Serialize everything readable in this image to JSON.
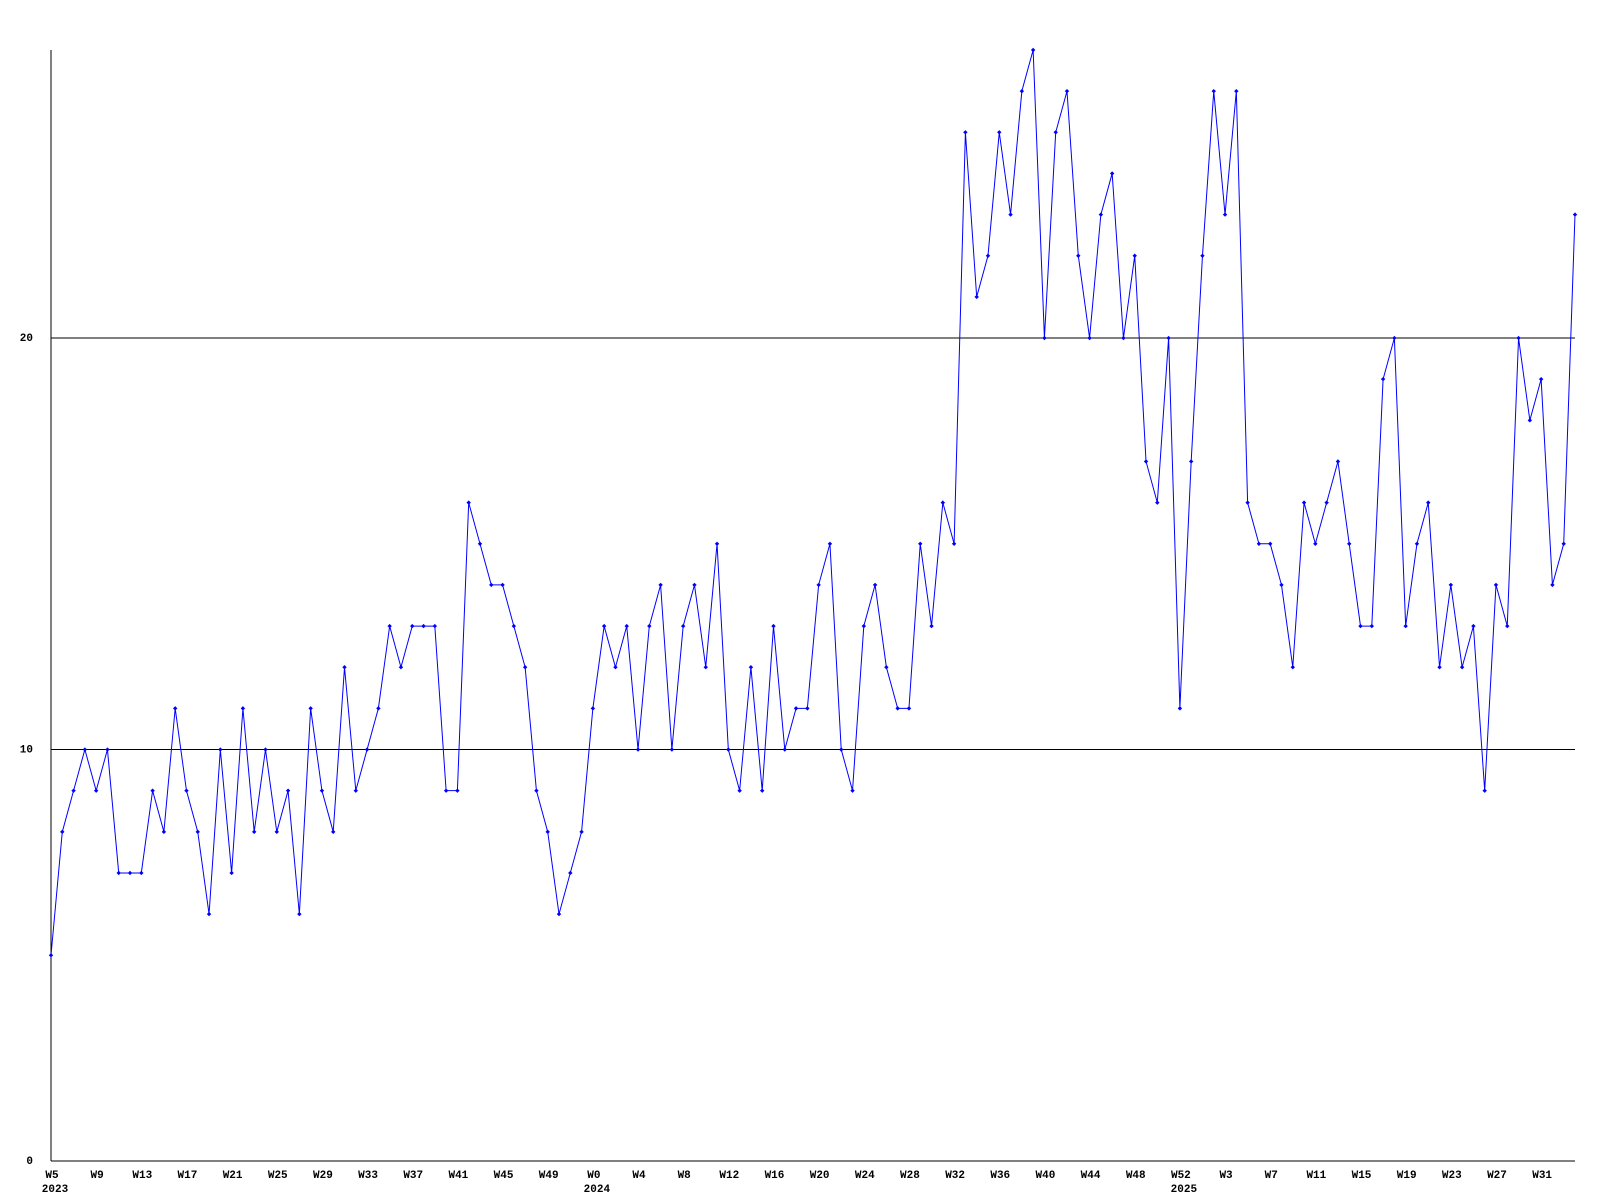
{
  "chart_data": {
    "type": "line",
    "color": "#0000ff",
    "grid": true,
    "categories": [
      "W5",
      null,
      null,
      null,
      "W9",
      null,
      null,
      null,
      "W13",
      null,
      null,
      null,
      "W17",
      null,
      null,
      null,
      "W21",
      null,
      null,
      null,
      "W25",
      null,
      null,
      null,
      "W29",
      null,
      null,
      null,
      "W33",
      null,
      null,
      null,
      "W37",
      null,
      null,
      null,
      "W41",
      null,
      null,
      null,
      "W45",
      null,
      null,
      null,
      "W49",
      null,
      null,
      null,
      "W0",
      null,
      null,
      null,
      "W4",
      null,
      null,
      null,
      "W8",
      null,
      null,
      null,
      "W12",
      null,
      null,
      null,
      "W16",
      null,
      null,
      null,
      "W20",
      null,
      null,
      null,
      "W24",
      null,
      null,
      null,
      "W28",
      null,
      null,
      null,
      "W32",
      null,
      null,
      null,
      "W36",
      null,
      null,
      null,
      "W40",
      null,
      null,
      null,
      "W44",
      null,
      null,
      null,
      "W48",
      null,
      null,
      null,
      "W52",
      null,
      null,
      null,
      "W3",
      null,
      null,
      null,
      "W7",
      null,
      null,
      null,
      "W11",
      null,
      null,
      null,
      "W15",
      null,
      null,
      null,
      "W19",
      null,
      null,
      null,
      "W23",
      null,
      null,
      null,
      "W27",
      null,
      null,
      null,
      "W31",
      null,
      null,
      null
    ],
    "years": [
      "2023",
      null,
      null,
      null,
      null,
      null,
      null,
      null,
      null,
      null,
      null,
      null,
      null,
      null,
      null,
      null,
      null,
      null,
      null,
      null,
      null,
      null,
      null,
      null,
      null,
      null,
      null,
      null,
      null,
      null,
      null,
      null,
      null,
      null,
      null,
      null,
      null,
      null,
      null,
      null,
      null,
      null,
      null,
      null,
      null,
      null,
      null,
      null,
      "2024",
      null,
      null,
      null,
      null,
      null,
      null,
      null,
      null,
      null,
      null,
      null,
      null,
      null,
      null,
      null,
      null,
      null,
      null,
      null,
      null,
      null,
      null,
      null,
      null,
      null,
      null,
      null,
      null,
      null,
      null,
      null,
      null,
      null,
      null,
      null,
      null,
      null,
      null,
      null,
      null,
      null,
      null,
      null,
      null,
      null,
      null,
      null,
      null,
      null,
      null,
      null,
      "2025",
      null,
      null,
      null,
      null,
      null,
      null,
      null,
      null,
      null,
      null,
      null,
      null,
      null,
      null,
      null,
      null,
      null,
      null,
      null,
      null,
      null,
      null,
      null,
      null,
      null,
      null,
      null,
      null,
      null,
      null,
      null,
      null,
      null,
      null,
      null
    ],
    "values": [
      5,
      8,
      9,
      10,
      9,
      10,
      7,
      7,
      7,
      9,
      8,
      11,
      9,
      8,
      6,
      10,
      7,
      11,
      8,
      10,
      8,
      9,
      6,
      11,
      9,
      8,
      12,
      9,
      10,
      11,
      13,
      12,
      13,
      13,
      13,
      9,
      9,
      16,
      15,
      14,
      14,
      13,
      12,
      9,
      8,
      6,
      7,
      8,
      11,
      13,
      12,
      13,
      10,
      13,
      14,
      10,
      13,
      14,
      12,
      15,
      10,
      9,
      12,
      9,
      13,
      10,
      11,
      11,
      14,
      15,
      10,
      9,
      13,
      14,
      12,
      11,
      11,
      15,
      13,
      16,
      15,
      25,
      21,
      22,
      25,
      23,
      26,
      27,
      20,
      25,
      26,
      22,
      20,
      23,
      24,
      20,
      22,
      17,
      16,
      20,
      11,
      17,
      22,
      26,
      23,
      26,
      16,
      15,
      15,
      14,
      12,
      16,
      15,
      16,
      17,
      15,
      13,
      13,
      19,
      20,
      13,
      15,
      16,
      12,
      14,
      12,
      13,
      9,
      14,
      13,
      20,
      18,
      19,
      14,
      15,
      23
    ],
    "ylim": [
      0,
      27
    ],
    "yticks": [
      0,
      10,
      20
    ]
  }
}
